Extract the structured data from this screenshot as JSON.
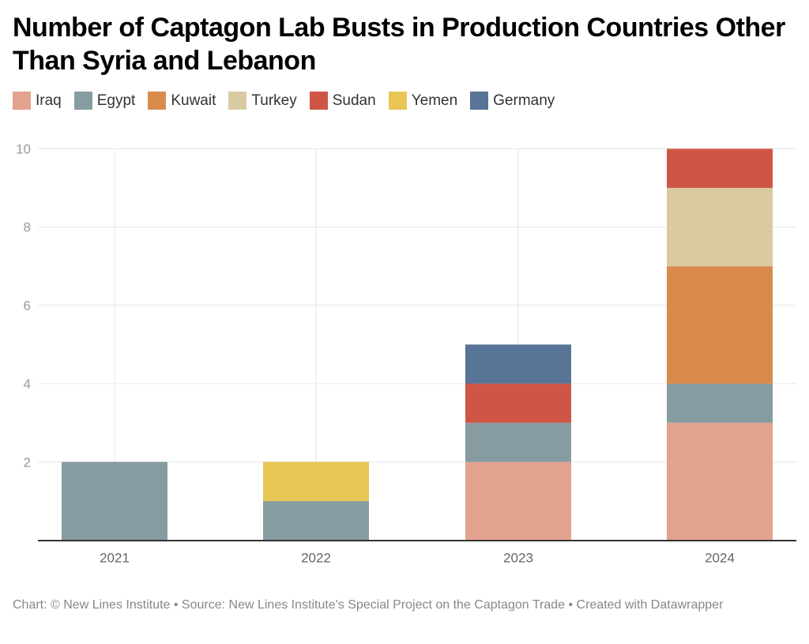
{
  "chart_data": {
    "type": "bar",
    "stacked": true,
    "title": "Number of Captagon Lab Busts in Production Countries Other Than Syria and Lebanon",
    "xlabel": "",
    "ylabel": "",
    "ylim": [
      0,
      10
    ],
    "yticks": [
      2,
      4,
      6,
      8,
      10
    ],
    "grid": true,
    "legend_position": "top-left",
    "categories": [
      "2021",
      "2022",
      "2023",
      "2024"
    ],
    "series": [
      {
        "name": "Iraq",
        "color": "#e2a28e",
        "values": [
          0,
          0,
          2,
          3
        ]
      },
      {
        "name": "Egypt",
        "color": "#879ca1",
        "values": [
          2,
          1,
          1,
          1
        ]
      },
      {
        "name": "Kuwait",
        "color": "#d98b4c",
        "values": [
          0,
          0,
          0,
          3
        ]
      },
      {
        "name": "Turkey",
        "color": "#dacaa2",
        "values": [
          0,
          0,
          0,
          2
        ]
      },
      {
        "name": "Sudan",
        "color": "#cf5646",
        "values": [
          0,
          0,
          1,
          1
        ]
      },
      {
        "name": "Yemen",
        "color": "#e8c656",
        "values": [
          0,
          1,
          0,
          0
        ]
      },
      {
        "name": "Germany",
        "color": "#587496",
        "values": [
          0,
          0,
          1,
          0
        ]
      }
    ]
  },
  "footer": {
    "text": "Chart: © New Lines Institute • Source: New Lines Institute's Special Project on the Captagon Trade • Created with Datawrapper"
  }
}
